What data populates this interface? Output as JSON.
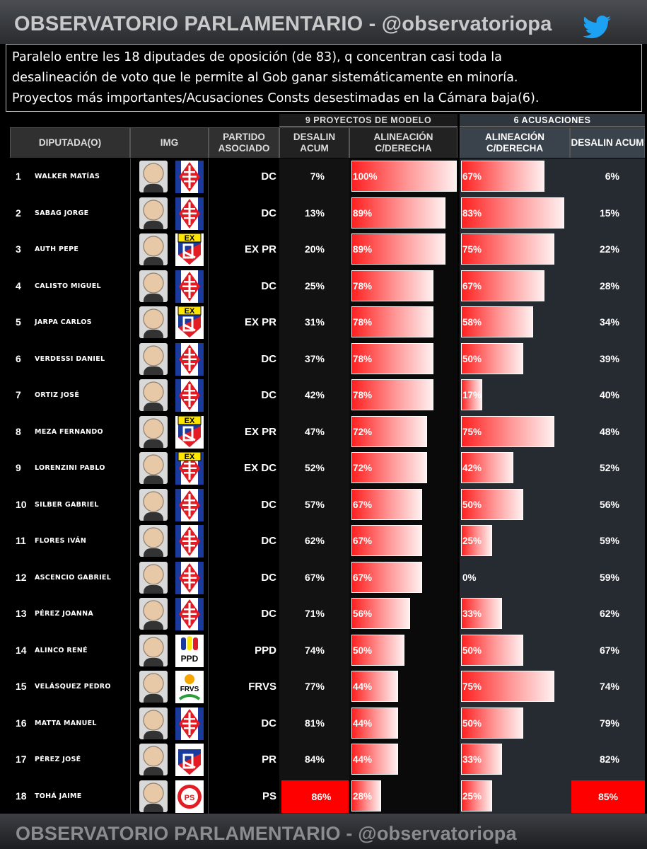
{
  "header": {
    "title": "OBSERVATORIO PARLAMENTARIO - @observatoriopa",
    "icon": "twitter-bird-icon"
  },
  "description": [
    "Paralelo entre les 18 diputades de oposición (de 83), q concentran casi toda la",
    "desalineación de voto que le permite al Gob ganar sistemáticamente en minoría.",
    "Proyectos más importantes/Acusaciones Consts desestimadas en la Cámara baja(6)."
  ],
  "group_headers": {
    "proyectos": "9 PROYECTOS DE MODELO",
    "acusaciones": "6 ACUSACIONES"
  },
  "columns": {
    "diputado": "DIPUTADA(O)",
    "img": "IMG",
    "partido": "PARTIDO ASOCIADO",
    "desalin1": "DESALIN ACUM",
    "alin1": "ALINEACIÓN C/DERECHA",
    "alin2": "ALINEACIÓN C/DERECHA",
    "desalin2": "DESALIN ACUM"
  },
  "footer": {
    "title": "OBSERVATORIO PARLAMENTARIO - @observatoriopa"
  },
  "colors": {
    "bar_start": "#ff2020",
    "bar_end": "#fff0f0",
    "highlight": "#ff0000",
    "acusaciones_bg": "#262b32"
  },
  "chart_data": {
    "type": "table",
    "rows": [
      {
        "num": "1",
        "name": "Walker Matías",
        "party": "DC",
        "logo": "dc-logo-icon",
        "desalin_proyectos": "7%",
        "alin_proyectos": 100,
        "alin_proyectos_label": "100%",
        "alin_acusaciones": 67,
        "alin_acusaciones_label": "67%",
        "desalin_acusaciones": "6%"
      },
      {
        "num": "2",
        "name": "Sabag Jorge",
        "party": "DC",
        "logo": "dc-logo-icon",
        "desalin_proyectos": "13%",
        "alin_proyectos": 89,
        "alin_proyectos_label": "89%",
        "alin_acusaciones": 83,
        "alin_acusaciones_label": "83%",
        "desalin_acusaciones": "15%"
      },
      {
        "num": "3",
        "name": "Auth Pepe",
        "party": "EX PR",
        "logo": "ex-pr-logo-icon",
        "desalin_proyectos": "20%",
        "alin_proyectos": 89,
        "alin_proyectos_label": "89%",
        "alin_acusaciones": 75,
        "alin_acusaciones_label": "75%",
        "desalin_acusaciones": "22%"
      },
      {
        "num": "4",
        "name": "Calisto Miguel",
        "party": "DC",
        "logo": "dc-logo-icon",
        "desalin_proyectos": "25%",
        "alin_proyectos": 78,
        "alin_proyectos_label": "78%",
        "alin_acusaciones": 67,
        "alin_acusaciones_label": "67%",
        "desalin_acusaciones": "28%"
      },
      {
        "num": "5",
        "name": "Jarpa Carlos",
        "party": "EX PR",
        "logo": "ex-pr-logo-icon",
        "desalin_proyectos": "31%",
        "alin_proyectos": 78,
        "alin_proyectos_label": "78%",
        "alin_acusaciones": 58,
        "alin_acusaciones_label": "58%",
        "desalin_acusaciones": "34%"
      },
      {
        "num": "6",
        "name": "Verdessi Daniel",
        "party": "DC",
        "logo": "dc-logo-icon",
        "desalin_proyectos": "37%",
        "alin_proyectos": 78,
        "alin_proyectos_label": "78%",
        "alin_acusaciones": 50,
        "alin_acusaciones_label": "50%",
        "desalin_acusaciones": "39%"
      },
      {
        "num": "7",
        "name": "Ortiz José",
        "party": "DC",
        "logo": "dc-logo-icon",
        "desalin_proyectos": "42%",
        "alin_proyectos": 78,
        "alin_proyectos_label": "78%",
        "alin_acusaciones": 17,
        "alin_acusaciones_label": "17%",
        "desalin_acusaciones": "40%"
      },
      {
        "num": "8",
        "name": "Meza Fernando",
        "party": "EX PR",
        "logo": "ex-pr-logo-icon",
        "desalin_proyectos": "47%",
        "alin_proyectos": 72,
        "alin_proyectos_label": "72%",
        "alin_acusaciones": 75,
        "alin_acusaciones_label": "75%",
        "desalin_acusaciones": "48%"
      },
      {
        "num": "9",
        "name": "Lorenzini Pablo",
        "party": "EX DC",
        "logo": "ex-dc-logo-icon",
        "desalin_proyectos": "52%",
        "alin_proyectos": 72,
        "alin_proyectos_label": "72%",
        "alin_acusaciones": 42,
        "alin_acusaciones_label": "42%",
        "desalin_acusaciones": "52%"
      },
      {
        "num": "10",
        "name": "Silber Gabriel",
        "party": "DC",
        "logo": "dc-logo-icon",
        "desalin_proyectos": "57%",
        "alin_proyectos": 67,
        "alin_proyectos_label": "67%",
        "alin_acusaciones": 50,
        "alin_acusaciones_label": "50%",
        "desalin_acusaciones": "56%"
      },
      {
        "num": "11",
        "name": "Flores Iván",
        "party": "DC",
        "logo": "dc-logo-icon",
        "desalin_proyectos": "62%",
        "alin_proyectos": 67,
        "alin_proyectos_label": "67%",
        "alin_acusaciones": 25,
        "alin_acusaciones_label": "25%",
        "desalin_acusaciones": "59%"
      },
      {
        "num": "12",
        "name": "Ascencio Gabriel",
        "party": "DC",
        "logo": "dc-logo-icon",
        "desalin_proyectos": "67%",
        "alin_proyectos": 67,
        "alin_proyectos_label": "67%",
        "alin_acusaciones": 0,
        "alin_acusaciones_label": "0%",
        "desalin_acusaciones": "59%"
      },
      {
        "num": "13",
        "name": "Pérez Joanna",
        "party": "DC",
        "logo": "dc-logo-icon",
        "desalin_proyectos": "71%",
        "alin_proyectos": 56,
        "alin_proyectos_label": "56%",
        "alin_acusaciones": 33,
        "alin_acusaciones_label": "33%",
        "desalin_acusaciones": "62%"
      },
      {
        "num": "14",
        "name": "Alinco René",
        "party": "PPD",
        "logo": "ppd-logo-icon",
        "desalin_proyectos": "74%",
        "alin_proyectos": 50,
        "alin_proyectos_label": "50%",
        "alin_acusaciones": 50,
        "alin_acusaciones_label": "50%",
        "desalin_acusaciones": "67%"
      },
      {
        "num": "15",
        "name": "Velásquez Pedro",
        "party": "FRVS",
        "logo": "frvs-logo-icon",
        "desalin_proyectos": "77%",
        "alin_proyectos": 44,
        "alin_proyectos_label": "44%",
        "alin_acusaciones": 75,
        "alin_acusaciones_label": "75%",
        "desalin_acusaciones": "74%"
      },
      {
        "num": "16",
        "name": "Matta Manuel",
        "party": "DC",
        "logo": "dc-logo-icon",
        "desalin_proyectos": "81%",
        "alin_proyectos": 44,
        "alin_proyectos_label": "44%",
        "alin_acusaciones": 50,
        "alin_acusaciones_label": "50%",
        "desalin_acusaciones": "79%"
      },
      {
        "num": "17",
        "name": "Pérez José",
        "party": "PR",
        "logo": "pr-logo-icon",
        "desalin_proyectos": "84%",
        "alin_proyectos": 44,
        "alin_proyectos_label": "44%",
        "alin_acusaciones": 33,
        "alin_acusaciones_label": "33%",
        "desalin_acusaciones": "82%"
      },
      {
        "num": "18",
        "name": "Tohá Jaime",
        "party": "PS",
        "logo": "ps-logo-icon",
        "desalin_proyectos": "86%",
        "alin_proyectos": 28,
        "alin_proyectos_label": "28%",
        "alin_acusaciones": 25,
        "alin_acusaciones_label": "25%",
        "desalin_acusaciones": "85%",
        "highlight": true
      }
    ]
  }
}
